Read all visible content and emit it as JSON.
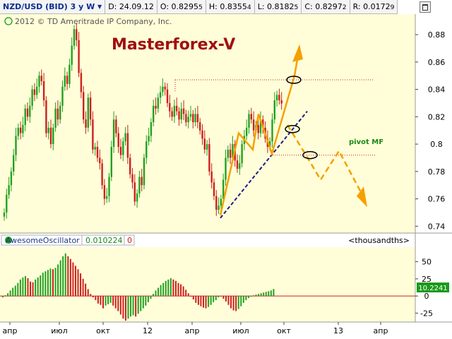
{
  "header": {
    "symbol": "NZD/USD (BID) 3 y W",
    "fields": [
      {
        "label": "D:",
        "value": "24.09.12"
      },
      {
        "label": "O:",
        "value": "0.8295",
        "sub": "5"
      },
      {
        "label": "H:",
        "value": "0.8355",
        "sub": "4"
      },
      {
        "label": "L:",
        "value": "0.8182",
        "sub": "5"
      },
      {
        "label": "C:",
        "value": "0.8297",
        "sub": "2"
      },
      {
        "label": "R:",
        "value": "0.0172",
        "sub": "9"
      }
    ]
  },
  "copyright": "2012 © TD Ameritrade IP Company, Inc.",
  "watermark": "Masterforex-V",
  "pivot_label": "pivot MF",
  "oscillator": {
    "name": "AwesomeOscillator",
    "value": "0.010224",
    "param": "0",
    "units": "<thousandths>",
    "last_value": "10.2241"
  },
  "colors": {
    "plot_bg": "#fffed8",
    "up": "#22a022",
    "down": "#cc2020",
    "projection": "#f5a000",
    "trendline": "#1c1c8a",
    "pivot": "#cc2020",
    "watermark": "#a01010",
    "pivot_label": "#1a8a1a",
    "last_tag_bg": "#1a9a1a"
  },
  "chart_data": [
    {
      "type": "candlestick",
      "title": "NZD/USD (BID) 3 y W",
      "ylim": [
        0.735,
        0.895
      ],
      "yticks": [
        "0.88",
        "0.86",
        "0.84",
        "0.82",
        "0.8",
        "0.78",
        "0.76",
        "0.74"
      ],
      "xticks": [
        "апр",
        "июл",
        "окт",
        "12",
        "апр",
        "июл",
        "окт",
        "13",
        "апр"
      ],
      "series": [
        {
          "close": [
            0.75,
            0.763,
            0.77,
            0.78,
            0.792,
            0.806,
            0.812,
            0.808,
            0.814,
            0.826,
            0.82,
            0.828,
            0.84,
            0.836,
            0.842,
            0.85,
            0.846,
            0.832,
            0.808,
            0.812,
            0.8,
            0.812,
            0.826,
            0.818,
            0.828,
            0.842,
            0.85,
            0.844,
            0.858,
            0.872,
            0.884,
            0.876,
            0.852,
            0.838,
            0.818,
            0.812,
            0.834,
            0.818,
            0.796,
            0.798,
            0.79,
            0.786,
            0.77,
            0.76,
            0.762,
            0.776,
            0.798,
            0.818,
            0.808,
            0.798,
            0.792,
            0.802,
            0.808,
            0.79,
            0.778,
            0.772,
            0.758,
            0.764,
            0.776,
            0.77,
            0.79,
            0.802,
            0.806,
            0.816,
            0.828,
            0.826,
            0.834,
            0.838,
            0.842,
            0.84,
            0.83,
            0.824,
            0.82,
            0.828,
            0.824,
            0.818,
            0.826,
            0.822,
            0.816,
            0.82,
            0.822,
            0.816,
            0.822,
            0.816,
            0.81,
            0.804,
            0.796,
            0.8,
            0.78,
            0.772,
            0.762,
            0.752,
            0.755,
            0.76,
            0.774,
            0.79,
            0.796,
            0.79,
            0.8,
            0.788,
            0.782,
            0.786,
            0.8,
            0.806,
            0.812,
            0.822,
            0.818,
            0.81,
            0.814,
            0.808,
            0.818,
            0.812,
            0.804,
            0.798,
            0.802,
            0.818,
            0.832,
            0.836,
            0.832,
            0.8297
          ]
        }
      ],
      "pivot_levels": [
        0.847,
        0.792
      ],
      "trend_from": [
        "2012-06",
        0.746
      ],
      "trend_to": [
        "2012-11",
        0.824
      ]
    },
    {
      "type": "bar",
      "title": "AwesomeOscillator",
      "ylim": [
        -38,
        65
      ],
      "yticks": [
        "50",
        "25",
        "0",
        "-25"
      ],
      "series": [
        {
          "values": [
            -2,
            1,
            4,
            8,
            12,
            15,
            19,
            24,
            27,
            29,
            26,
            21,
            20,
            24,
            27,
            30,
            34,
            36,
            38,
            40,
            39,
            41,
            46,
            52,
            58,
            62,
            58,
            54,
            49,
            44,
            39,
            33,
            25,
            18,
            10,
            3,
            -2,
            -6,
            -11,
            -13,
            -18,
            -14,
            -12,
            -10,
            -14,
            -18,
            -22,
            -27,
            -33,
            -36,
            -33,
            -30,
            -28,
            -30,
            -26,
            -22,
            -18,
            -14,
            -9,
            -4,
            3,
            8,
            12,
            16,
            19,
            22,
            24,
            26,
            24,
            22,
            19,
            17,
            14,
            9,
            4,
            -1,
            -5,
            -10,
            -13,
            -15,
            -17,
            -18,
            -16,
            -13,
            -9,
            -6,
            -2,
            -1,
            -4,
            -8,
            -13,
            -18,
            -21,
            -22,
            -19,
            -15,
            -10,
            -6,
            -3,
            -1,
            1,
            2,
            3,
            4,
            5,
            6,
            7,
            8,
            10.2
          ]
        }
      ]
    }
  ]
}
